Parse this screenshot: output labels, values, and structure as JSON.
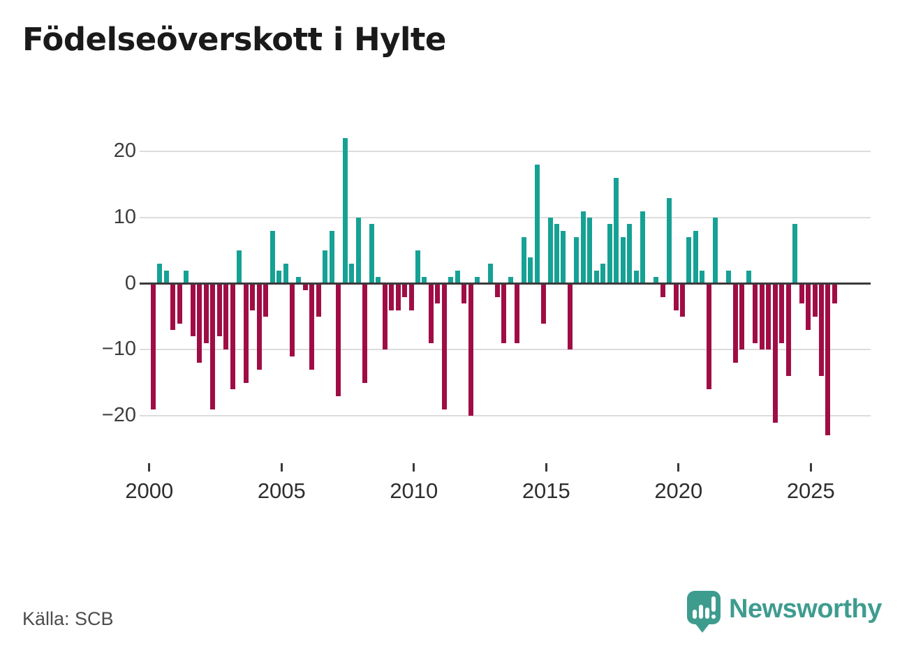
{
  "header": {
    "title": "Födelseöverskott i Hylte"
  },
  "footer": {
    "source": "Källa: SCB",
    "logo_text": "Newsworthy",
    "logo_icon": "speech-bubble-bar-chart-icon"
  },
  "colors": {
    "positive_bar": "#16a195",
    "negative_bar": "#a00d45",
    "zero_axis": "#3a3a3a",
    "gridline": "#dcdcdc",
    "logo_teal": "#3e9c8f",
    "icon_glyph_white": "#ffffff"
  },
  "chart_data": {
    "type": "bar",
    "title": "Födelseöverskott i Hylte",
    "xlabel": "",
    "ylabel": "",
    "ylim": [
      -25,
      24
    ],
    "grid": "horizontal",
    "y_ticks": [
      {
        "value": 20,
        "label": "20"
      },
      {
        "value": 10,
        "label": "10"
      },
      {
        "value": 0,
        "label": "0"
      },
      {
        "value": -10,
        "label": "−10"
      },
      {
        "value": -20,
        "label": "−20"
      }
    ],
    "x_ticks": [
      "2000",
      "2005",
      "2010",
      "2015",
      "2020",
      "2025"
    ],
    "x_start_year": 2000,
    "frequency": "quarterly",
    "x": [
      "2000Q1",
      "2000Q2",
      "2000Q3",
      "2000Q4",
      "2001Q1",
      "2001Q2",
      "2001Q3",
      "2001Q4",
      "2002Q1",
      "2002Q2",
      "2002Q3",
      "2002Q4",
      "2003Q1",
      "2003Q2",
      "2003Q3",
      "2003Q4",
      "2004Q1",
      "2004Q2",
      "2004Q3",
      "2004Q4",
      "2005Q1",
      "2005Q2",
      "2005Q3",
      "2005Q4",
      "2006Q1",
      "2006Q2",
      "2006Q3",
      "2006Q4",
      "2007Q1",
      "2007Q2",
      "2007Q3",
      "2007Q4",
      "2008Q1",
      "2008Q2",
      "2008Q3",
      "2008Q4",
      "2009Q1",
      "2009Q2",
      "2009Q3",
      "2009Q4",
      "2010Q1",
      "2010Q2",
      "2010Q3",
      "2010Q4",
      "2011Q1",
      "2011Q2",
      "2011Q3",
      "2011Q4",
      "2012Q1",
      "2012Q2",
      "2012Q3",
      "2012Q4",
      "2013Q1",
      "2013Q2",
      "2013Q3",
      "2013Q4",
      "2014Q1",
      "2014Q2",
      "2014Q3",
      "2014Q4",
      "2015Q1",
      "2015Q2",
      "2015Q3",
      "2015Q4",
      "2016Q1",
      "2016Q2",
      "2016Q3",
      "2016Q4",
      "2017Q1",
      "2017Q2",
      "2017Q3",
      "2017Q4",
      "2018Q1",
      "2018Q2",
      "2018Q3",
      "2018Q4",
      "2019Q1",
      "2019Q2",
      "2019Q3",
      "2019Q4",
      "2020Q1",
      "2020Q2",
      "2020Q3",
      "2020Q4",
      "2021Q1",
      "2021Q2",
      "2021Q3",
      "2021Q4",
      "2022Q1",
      "2022Q2",
      "2022Q3",
      "2022Q4",
      "2023Q1",
      "2023Q2",
      "2023Q3",
      "2023Q4",
      "2024Q1",
      "2024Q2",
      "2024Q3",
      "2024Q4",
      "2025Q1",
      "2025Q2",
      "2025Q3",
      "2025Q4"
    ],
    "values": [
      -19,
      3,
      2,
      -7,
      -6,
      2,
      -8,
      -12,
      -9,
      -19,
      -8,
      -10,
      -16,
      5,
      -15,
      -4,
      -13,
      -5,
      8,
      2,
      3,
      -11,
      1,
      -1,
      -13,
      -5,
      5,
      8,
      -17,
      22,
      3,
      10,
      -15,
      9,
      1,
      -10,
      -4,
      -4,
      -2,
      -4,
      5,
      1,
      -9,
      -3,
      -19,
      1,
      2,
      -3,
      -20,
      1,
      0,
      3,
      -2,
      -9,
      1,
      -9,
      7,
      4,
      18,
      -6,
      10,
      9,
      8,
      -10,
      7,
      11,
      10,
      2,
      3,
      9,
      16,
      7,
      9,
      2,
      11,
      0,
      1,
      -2,
      13,
      -4,
      -5,
      7,
      8,
      2,
      -16,
      10,
      0,
      2,
      -12,
      -10,
      2,
      -9,
      -10,
      -10,
      -21,
      -9,
      -14,
      9,
      -3,
      -7,
      -5,
      -14,
      -23,
      -3
    ]
  }
}
